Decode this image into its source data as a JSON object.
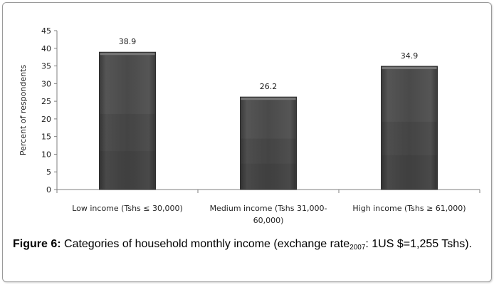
{
  "chart_data": {
    "type": "bar",
    "categories": [
      [
        "Low income (Tshs ≤ 30,000)"
      ],
      [
        "Medium income (Tshs 31,000-",
        "60,000)"
      ],
      [
        "High income (Tshs ≥ 61,000)"
      ]
    ],
    "values": [
      38.9,
      26.2,
      34.9
    ],
    "data_labels": [
      "38.9",
      "26.2",
      "34.9"
    ],
    "ylabel": "Percent of respondents",
    "xlabel": "",
    "ylim": [
      0,
      45
    ],
    "yticks": [
      0,
      5,
      10,
      15,
      20,
      25,
      30,
      35,
      40,
      45
    ],
    "grid": false,
    "legend": "none",
    "bar_color": "#4a4a4a"
  },
  "caption": {
    "label": "Figure 6:",
    "text_before_sub": " Categories of household monthly income (exchange rate",
    "subscript": "2007",
    "text_after_sub": ": 1US $=1,255 Tshs)."
  }
}
